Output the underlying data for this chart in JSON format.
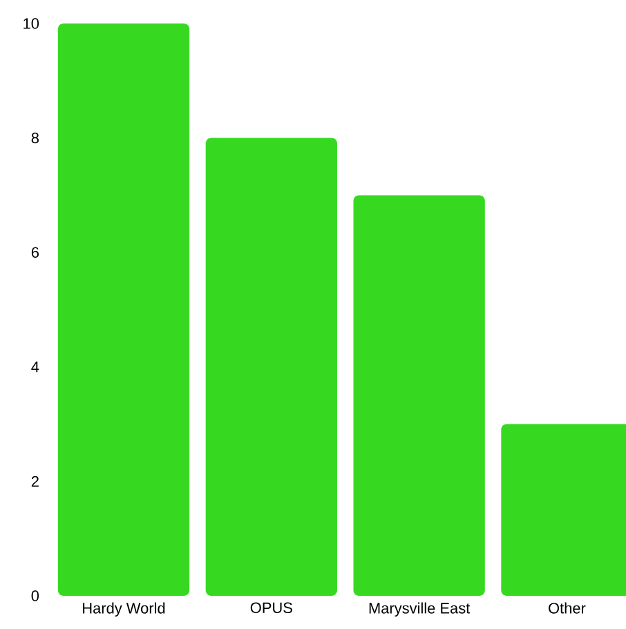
{
  "chart_data": {
    "type": "bar",
    "categories": [
      "Hardy World",
      "OPUS",
      "Marysville East",
      "Other"
    ],
    "values": [
      10,
      8,
      7,
      3
    ],
    "color": "#37d920",
    "ylim": [
      0,
      10
    ],
    "yticks": [
      0,
      2,
      4,
      6,
      8,
      10
    ]
  }
}
